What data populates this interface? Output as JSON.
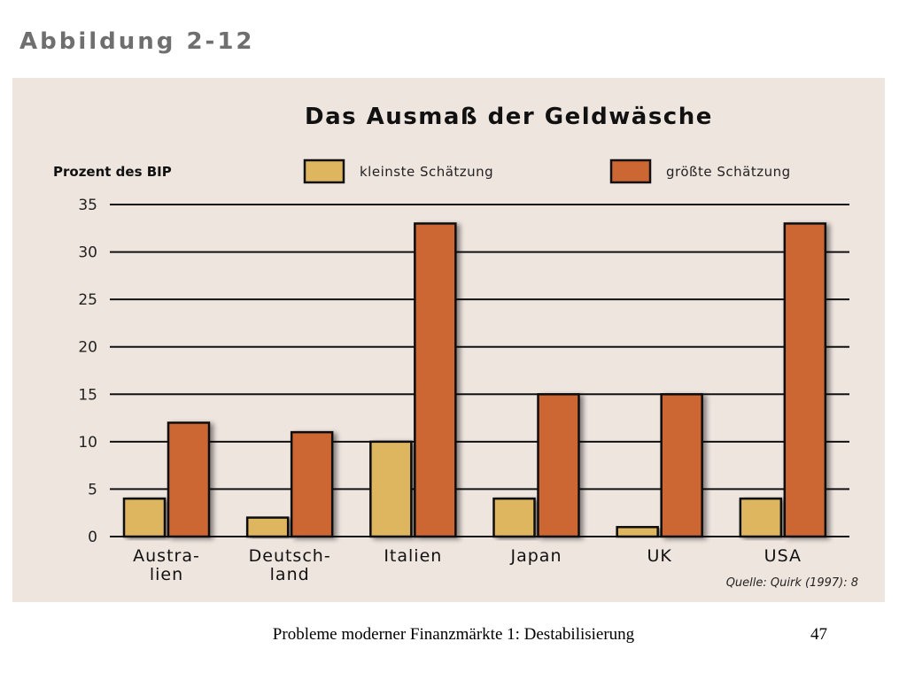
{
  "slide": {
    "heading": "Abbildung 2-12",
    "footer": "Probleme moderner Finanzmärkte 1: Destabilisierung",
    "page_number": "47"
  },
  "chart_data": {
    "type": "bar",
    "title": "Das Ausmaß der Geldwäsche",
    "ylabel": "Prozent des BIP",
    "xlabel": "",
    "ylim": [
      0,
      35
    ],
    "yticks": [
      0,
      5,
      10,
      15,
      20,
      25,
      30,
      35
    ],
    "grid": true,
    "legend_position": "top",
    "categories": [
      [
        "Austra-",
        "lien"
      ],
      [
        "Deutsch-",
        "land"
      ],
      [
        "Italien"
      ],
      [
        "Japan"
      ],
      [
        "UK"
      ],
      [
        "USA"
      ]
    ],
    "series": [
      {
        "name": "kleinste Schätzung",
        "color": "#dfb660",
        "values": [
          4,
          2,
          10,
          4,
          1,
          4
        ]
      },
      {
        "name": "größte Schätzung",
        "color": "#cc6633",
        "values": [
          12,
          11,
          33,
          15,
          15,
          33
        ]
      }
    ],
    "source": "Quelle: Quirk (1997): 8",
    "colors": {
      "panel_background": "#efe5df",
      "axis_and_grid": "#111111"
    }
  }
}
